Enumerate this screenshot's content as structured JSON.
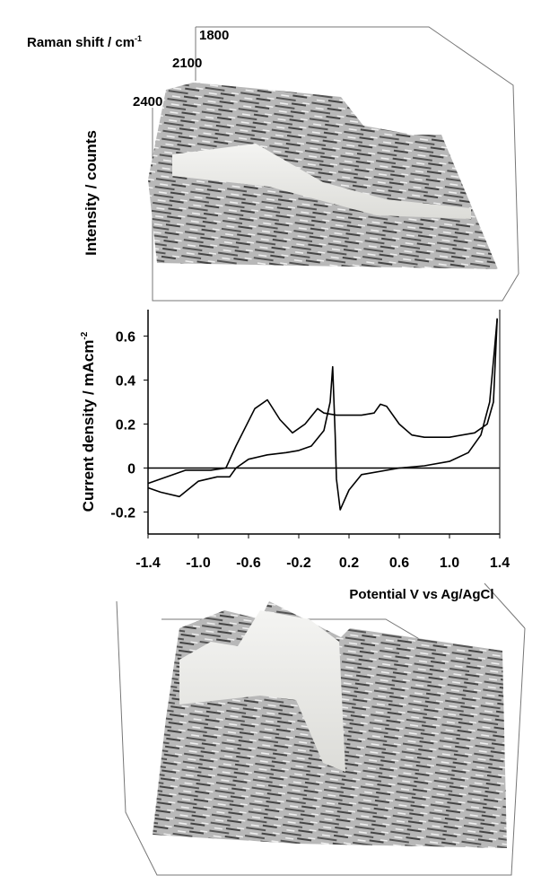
{
  "top_surface": {
    "raman_label": "Raman shift / cm",
    "raman_label_sup": "-1",
    "raman_ticks": [
      1800,
      2100,
      2400
    ],
    "intensity_label": "Intensity / counts"
  },
  "chart_data": {
    "type": "line",
    "xlabel": "Potential V vs Ag/AgCl",
    "ylabel": "Current density / mAcm",
    "ylabel_sup": "-2",
    "xlim": [
      -1.4,
      1.4
    ],
    "ylim": [
      -0.3,
      0.72
    ],
    "xticks": [
      -1.4,
      {
        "value": -1,
        "label": "-1.0"
      },
      -0.6,
      -0.2,
      0.2,
      0.6,
      {
        "value": 1,
        "label": "1.0"
      },
      1.4
    ],
    "yticks": [
      -0.2,
      0,
      0.2,
      0.4,
      0.6
    ],
    "series": [
      {
        "color": "#000000",
        "x": [
          -1.4,
          -1.3,
          -1.15,
          -1.0,
          -0.85,
          -0.75,
          -0.7,
          -0.6,
          -0.45,
          -0.3,
          -0.2,
          -0.1,
          0.0,
          0.05,
          0.07,
          0.09,
          0.1,
          0.13,
          0.2,
          0.3,
          0.6,
          0.8,
          1.0,
          1.15,
          1.25,
          1.32,
          1.36,
          1.38
        ],
        "values": [
          -0.09,
          -0.11,
          -0.13,
          -0.06,
          -0.04,
          -0.04,
          0.0,
          0.04,
          0.06,
          0.07,
          0.08,
          0.1,
          0.17,
          0.3,
          0.46,
          0.15,
          -0.05,
          -0.19,
          -0.1,
          -0.03,
          0.0,
          0.01,
          0.03,
          0.07,
          0.15,
          0.3,
          0.55,
          0.68
        ]
      },
      {
        "color": "#000000",
        "x": [
          1.38,
          1.35,
          1.3,
          1.2,
          1.0,
          0.8,
          0.7,
          0.6,
          0.5,
          0.45,
          0.4,
          0.3,
          0.1,
          0.0,
          -0.05,
          -0.15,
          -0.25,
          -0.35,
          -0.45,
          -0.55,
          -0.7,
          -0.78,
          -0.9,
          -1.1,
          -1.4
        ],
        "values": [
          0.68,
          0.3,
          0.2,
          0.16,
          0.14,
          0.14,
          0.15,
          0.2,
          0.28,
          0.29,
          0.25,
          0.24,
          0.24,
          0.25,
          0.27,
          0.2,
          0.16,
          0.22,
          0.31,
          0.27,
          0.1,
          0.0,
          -0.01,
          -0.01,
          -0.07
        ]
      }
    ]
  }
}
